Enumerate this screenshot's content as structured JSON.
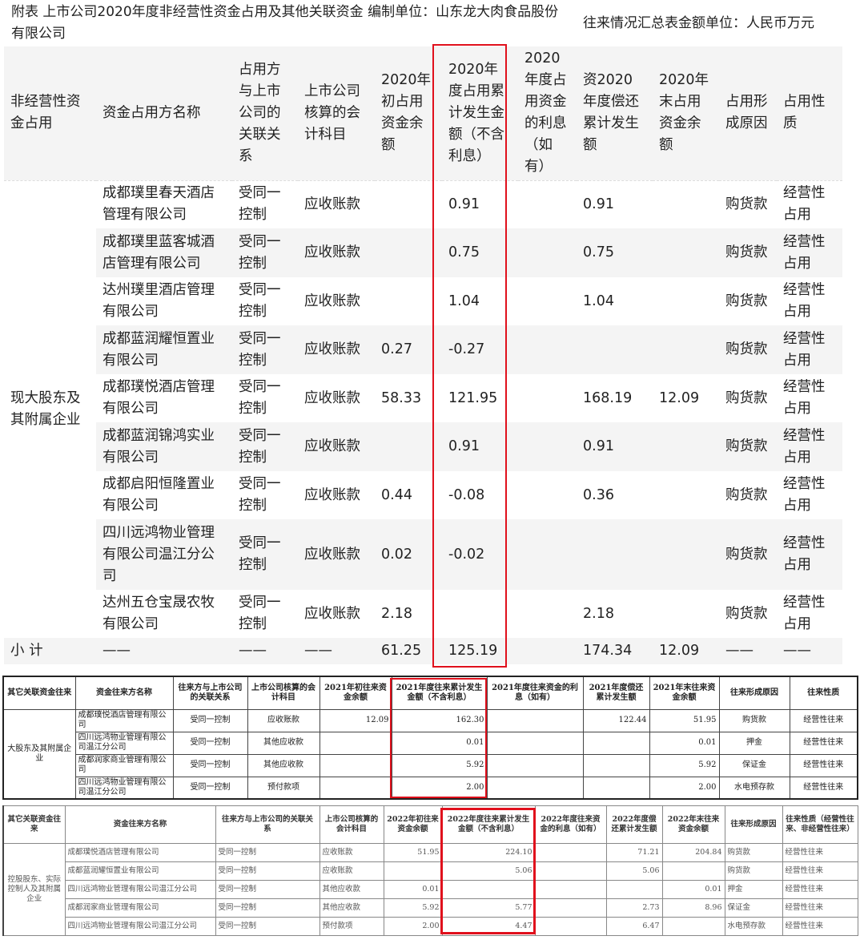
{
  "title": "附表 上市公司2020年度非经营性资金占用及其他关联资金 编制单位：山东龙大肉食品股份有限公司",
  "unit": "往来情况汇总表金额单位：人民币万元",
  "table1": {
    "headers": [
      "非经营性资金占用",
      "资金占用方名称",
      "占用方与上市公司的关联关系",
      "上市公司核算的会计科目",
      "2020年初占用资金余额",
      "2020年度占用累计发生金额（不含利息）",
      "2020年度占用资金的利息（如有）",
      "资2020年度偿还累计发生额",
      "2020年末占用资金余额",
      "占用形成原因",
      "占用性质"
    ],
    "group": "现大股东及其附属企业",
    "rows": [
      [
        "成都璞里春天酒店管理有限公司",
        "受同一控制",
        "应收账款",
        "",
        "0.91",
        "",
        "0.91",
        "",
        "购货款",
        "经营性占用"
      ],
      [
        "成都璞里蓝客城酒店管理有限公司",
        "受同一控制",
        "应收账款",
        "",
        "0.75",
        "",
        "0.75",
        "",
        "购货款",
        "经营性占用"
      ],
      [
        "达州璞里酒店管理有限公司",
        "受同一控制",
        "应收账款",
        "",
        "1.04",
        "",
        "1.04",
        "",
        "购货款",
        "经营性占用"
      ],
      [
        "成都蓝润耀恒置业有限公司",
        "受同一控制",
        "应收账款",
        "0.27",
        "-0.27",
        "",
        "",
        "",
        "购货款",
        "经营性占用"
      ],
      [
        "成都璞悦酒店管理有限公司",
        "受同一控制",
        "应收账款",
        "58.33",
        "121.95",
        "",
        "168.19",
        "12.09",
        "购货款",
        "经营性占用"
      ],
      [
        "成都蓝润锦鸿实业有限公司",
        "受同一控制",
        "应收账款",
        "",
        "0.91",
        "",
        "0.91",
        "",
        "购货款",
        "经营性占用"
      ],
      [
        "成都启阳恒隆置业有限公司",
        "受同一控制",
        "应收账款",
        "0.44",
        "-0.08",
        "",
        "0.36",
        "",
        "购货款",
        "经营性占用"
      ],
      [
        "四川远鸿物业管理有限公司温江分公司",
        "受同一控制",
        "应收账款",
        "0.02",
        "-0.02",
        "",
        "",
        "",
        "购货款",
        "经营性占用"
      ],
      [
        "达州五仓宝晟农牧有限公司",
        "受同一控制",
        "应收账款",
        "2.18",
        "",
        "",
        "2.18",
        "",
        "购货款",
        "经营性占用"
      ]
    ],
    "subtotal": [
      "小 计",
      "——",
      "——",
      "——",
      "61.25",
      "125.19",
      "",
      "174.34",
      "12.09",
      "——",
      "——"
    ]
  },
  "table2": {
    "headers": [
      "其它关联资金往来",
      "资金往来方名称",
      "往来方与上市公司的关联关系",
      "上市公司核算的会计科目",
      "2021年初往来资金余额",
      "2021年度往来累计发生金额（不含利息）",
      "2021年度往来资金的利息（如有）",
      "2021年度偿还累计发生额",
      "2021年末往来资金余额",
      "往来形成原因",
      "往来性质"
    ],
    "group": "大股东及其附属企业",
    "rows": [
      [
        "成都璞悦酒店管理有限公司",
        "受同一控制",
        "应收账款",
        "12.09",
        "162.30",
        "",
        "122.44",
        "51.95",
        "购货款",
        "经营性往来"
      ],
      [
        "四川远鸿物业管理有限公司温江分公司",
        "受同一控制",
        "其他应收款",
        "",
        "0.01",
        "",
        "",
        "0.01",
        "押金",
        "经营性往来"
      ],
      [
        "成都润家商业管理有限公司",
        "受同一控制",
        "其他应收款",
        "",
        "5.92",
        "",
        "",
        "5.92",
        "保证金",
        "经营性往来"
      ],
      [
        "四川远鸿物业管理有限公司温江分公司",
        "受同一控制",
        "预付款项",
        "",
        "2.00",
        "",
        "",
        "2.00",
        "水电预存款",
        "经营性往来"
      ]
    ]
  },
  "table3": {
    "headers": [
      "其它关联资金往来",
      "资金往来方名称",
      "往来方与上市公司的关联关系",
      "上市公司核算的会计科目",
      "2022年初往来资金余额",
      "2022年度往来累计发生金额（不含利息）",
      "2022年度往来资金的利息（如有）",
      "2022年度偿还累计发生额",
      "2022年末往来资金余额",
      "往来形成原因",
      "往来性质（经营性往来、非经营性往来）"
    ],
    "group": "控股股东、实际控制人及其附属企业",
    "rows": [
      [
        "成都璞悦酒店管理有限公司",
        "受同一控制",
        "应收账款",
        "51.95",
        "224.10",
        "",
        "71.21",
        "204.84",
        "购货款",
        "经营性往来"
      ],
      [
        "成都蓝润耀恒置业有限公司",
        "受同一控制",
        "应收账款",
        "",
        "5.06",
        "",
        "5.06",
        "",
        "购货款",
        "经营性往来"
      ],
      [
        "四川远鸿物业管理有限公司温江分公司",
        "受同一控制",
        "其他应收款",
        "0.01",
        "",
        "",
        "",
        "0.01",
        "押金",
        "经营性往来"
      ],
      [
        "成都润家商业管理有限公司",
        "受同一控制",
        "其他应收款",
        "5.92",
        "5.77",
        "",
        "2.73",
        "8.96",
        "保证金",
        "经营性往来"
      ],
      [
        "四川远鸿物业管理有限公司温江分公司",
        "受同一控制",
        "预付款项",
        "2.00",
        "4.47",
        "",
        "6.47",
        "",
        "水电预存款",
        "经营性往来"
      ]
    ]
  },
  "colors": {
    "highlight": "#e0101c",
    "row_alt": "#f4f4f4"
  }
}
